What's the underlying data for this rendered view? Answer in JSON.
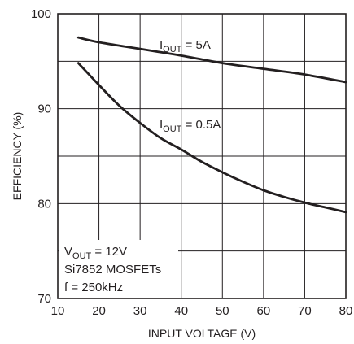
{
  "chart_data": {
    "type": "line",
    "xlabel": "INPUT VOLTAGE (V)",
    "ylabel": "EFFICIENCY (%)",
    "xlim": [
      10,
      80
    ],
    "ylim": [
      70,
      100
    ],
    "xticks": [
      "10",
      "20",
      "30",
      "40",
      "50",
      "60",
      "70",
      "80"
    ],
    "yticks": [
      "70",
      "80",
      "90",
      "100"
    ],
    "grid": true,
    "series": [
      {
        "name": "IOUT = 5A",
        "x": [
          15,
          20,
          30,
          40,
          50,
          60,
          70,
          80
        ],
        "y": [
          97.5,
          97.0,
          96.3,
          95.6,
          94.8,
          94.2,
          93.6,
          92.8
        ]
      },
      {
        "name": "IOUT = 0.5A",
        "x": [
          15,
          20,
          25,
          30,
          35,
          40,
          45,
          50,
          55,
          60,
          65,
          70,
          75,
          80
        ],
        "y": [
          94.8,
          92.5,
          90.3,
          88.5,
          86.9,
          85.7,
          84.4,
          83.3,
          82.3,
          81.4,
          80.7,
          80.1,
          79.6,
          79.1
        ]
      }
    ],
    "labels": [
      {
        "main": "I",
        "sub": "OUT",
        "rest": " = 5A"
      },
      {
        "main": "I",
        "sub": "OUT",
        "rest": " = 0.5A"
      }
    ],
    "conditions": {
      "line1_main": "V",
      "line1_sub": "OUT",
      "line1_rest": " = 12V",
      "line2": "Si7852 MOSFETs",
      "line3": "f = 250kHz"
    }
  }
}
